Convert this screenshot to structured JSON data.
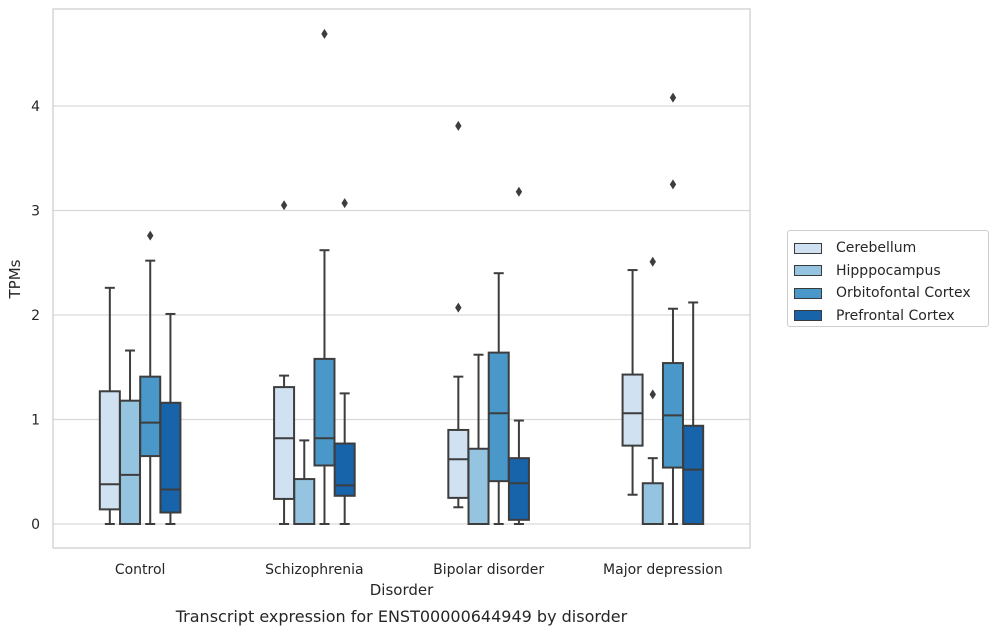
{
  "chart_data": {
    "type": "boxplot",
    "title": "Transcript expression for ENST00000644949 by disorder",
    "xlabel": "Disorder",
    "ylabel": "TPMs",
    "ylim": [
      -0.22,
      4.95
    ],
    "yticks": [
      "0",
      "1",
      "2",
      "3",
      "4"
    ],
    "categories": [
      "Control",
      "Schizophrenia",
      "Bipolar disorder",
      "Major depression"
    ],
    "grid": "horizontal",
    "legend_position": "right",
    "series": [
      {
        "name": "Cerebellum",
        "color": "#d0e1f2",
        "boxes": [
          {
            "whislo": 0.0,
            "q1": 0.14,
            "med": 0.38,
            "q3": 1.27,
            "whishi": 2.26,
            "fliers": []
          },
          {
            "whislo": 0.0,
            "q1": 0.24,
            "med": 0.82,
            "q3": 1.31,
            "whishi": 1.42,
            "fliers": [
              3.05
            ]
          },
          {
            "whislo": 0.16,
            "q1": 0.25,
            "med": 0.62,
            "q3": 0.9,
            "whishi": 1.41,
            "fliers": [
              2.07,
              3.81
            ]
          },
          {
            "whislo": 0.28,
            "q1": 0.75,
            "med": 1.06,
            "q3": 1.43,
            "whishi": 2.43,
            "fliers": []
          }
        ]
      },
      {
        "name": "Hipppocampus",
        "color": "#94c4df",
        "boxes": [
          {
            "whislo": 0.0,
            "q1": 0.0,
            "med": 0.47,
            "q3": 1.18,
            "whishi": 1.66,
            "fliers": []
          },
          {
            "whislo": 0.0,
            "q1": 0.0,
            "med": 0.0,
            "q3": 0.43,
            "whishi": 0.8,
            "fliers": []
          },
          {
            "whislo": 0.0,
            "q1": 0.0,
            "med": 0.0,
            "q3": 0.72,
            "whishi": 1.62,
            "fliers": []
          },
          {
            "whislo": 0.0,
            "q1": 0.0,
            "med": 0.0,
            "q3": 0.39,
            "whishi": 0.63,
            "fliers": [
              1.24,
              2.51
            ]
          }
        ]
      },
      {
        "name": "Orbitofontal Cortex",
        "color": "#4a98c9",
        "boxes": [
          {
            "whislo": 0.0,
            "q1": 0.65,
            "med": 0.97,
            "q3": 1.41,
            "whishi": 2.52,
            "fliers": [
              2.76
            ]
          },
          {
            "whislo": 0.0,
            "q1": 0.56,
            "med": 0.82,
            "q3": 1.58,
            "whishi": 2.62,
            "fliers": [
              4.69
            ]
          },
          {
            "whislo": 0.0,
            "q1": 0.41,
            "med": 1.06,
            "q3": 1.64,
            "whishi": 2.4,
            "fliers": []
          },
          {
            "whislo": 0.0,
            "q1": 0.54,
            "med": 1.04,
            "q3": 1.54,
            "whishi": 2.06,
            "fliers": [
              3.25,
              4.08
            ]
          }
        ]
      },
      {
        "name": "Prefrontal Cortex",
        "color": "#1764ab",
        "boxes": [
          {
            "whislo": 0.0,
            "q1": 0.11,
            "med": 0.33,
            "q3": 1.16,
            "whishi": 2.01,
            "fliers": []
          },
          {
            "whislo": 0.0,
            "q1": 0.27,
            "med": 0.37,
            "q3": 0.77,
            "whishi": 1.25,
            "fliers": [
              3.07
            ]
          },
          {
            "whislo": 0.0,
            "q1": 0.04,
            "med": 0.39,
            "q3": 0.63,
            "whishi": 0.99,
            "fliers": [
              3.18
            ]
          },
          {
            "whislo": 0.0,
            "q1": 0.0,
            "med": 0.52,
            "q3": 0.94,
            "whishi": 2.12,
            "fliers": []
          }
        ]
      }
    ]
  }
}
